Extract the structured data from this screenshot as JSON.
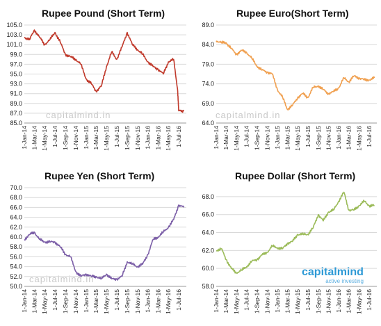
{
  "chart_data": [
    {
      "type": "line",
      "title": "Rupee Pound (Short Term)",
      "color": "#c0392b",
      "watermark": "capitalmind.in",
      "ylim": [
        85.0,
        105.0
      ],
      "yticks": [
        "105.0",
        "103.0",
        "101.0",
        "99.0",
        "97.0",
        "95.0",
        "93.0",
        "91.0",
        "89.0",
        "87.0",
        "85.0"
      ],
      "xticks": [
        "1-Jan-14",
        "1-Mar-14",
        "1-May-14",
        "1-Jul-14",
        "1-Sep-14",
        "1-Nov-14",
        "1-Jan-15",
        "1-Mar-15",
        "1-May-15",
        "1-Jul-15",
        "1-Sep-15",
        "1-Nov-15",
        "1-Jan-16",
        "1-Mar-16",
        "1-May-16",
        "1-Jul-16"
      ],
      "x": [
        "2014-01-01",
        "2014-02-01",
        "2014-03-01",
        "2014-04-01",
        "2014-05-01",
        "2014-06-01",
        "2014-07-01",
        "2014-08-01",
        "2014-09-01",
        "2014-10-01",
        "2014-11-01",
        "2014-12-01",
        "2015-01-01",
        "2015-02-01",
        "2015-03-01",
        "2015-04-01",
        "2015-05-01",
        "2015-06-01",
        "2015-07-01",
        "2015-08-01",
        "2015-09-01",
        "2015-10-01",
        "2015-11-01",
        "2015-12-01",
        "2016-01-01",
        "2016-02-01",
        "2016-03-01",
        "2016-04-01",
        "2016-05-01",
        "2016-06-01",
        "2016-06-24",
        "2016-07-01",
        "2016-08-01"
      ],
      "values": [
        102.5,
        102.0,
        104.0,
        102.5,
        101.0,
        102.0,
        103.5,
        101.5,
        99.0,
        98.5,
        98.0,
        97.0,
        94.0,
        93.0,
        91.5,
        92.5,
        96.5,
        99.5,
        98.0,
        100.5,
        103.5,
        101.0,
        100.0,
        99.0,
        97.5,
        96.5,
        96.0,
        95.0,
        97.5,
        98.0,
        92.0,
        87.5,
        87.5
      ]
    },
    {
      "type": "line",
      "title": "Rupee Euro(Short Term)",
      "color": "#f0a050",
      "watermark": "capitalmind.in",
      "ylim": [
        64.0,
        89.0
      ],
      "yticks": [
        "89.0",
        "84.0",
        "79.0",
        "74.0",
        "69.0",
        "64.0"
      ],
      "xticks": [
        "1-Jan-14",
        "1-Mar-14",
        "1-May-14",
        "1-Jul-14",
        "1-Sep-14",
        "1-Nov-14",
        "1-Jan-15",
        "1-Mar-15",
        "1-May-15",
        "1-Jul-15",
        "1-Sep-15",
        "1-Nov-15",
        "1-Jan-16",
        "1-Mar-16",
        "1-May-16",
        "1-Jul-16"
      ],
      "x": [
        "2014-01-01",
        "2014-02-01",
        "2014-03-01",
        "2014-04-01",
        "2014-05-01",
        "2014-06-01",
        "2014-07-01",
        "2014-08-01",
        "2014-09-01",
        "2014-10-01",
        "2014-11-01",
        "2014-12-01",
        "2015-01-01",
        "2015-02-01",
        "2015-03-01",
        "2015-04-01",
        "2015-05-01",
        "2015-06-01",
        "2015-07-01",
        "2015-08-01",
        "2015-09-01",
        "2015-10-01",
        "2015-11-01",
        "2015-12-01",
        "2016-01-01",
        "2016-02-01",
        "2016-03-01",
        "2016-04-01",
        "2016-05-01",
        "2016-06-01",
        "2016-07-01",
        "2016-08-01"
      ],
      "values": [
        85.0,
        84.5,
        84.5,
        83.0,
        81.5,
        82.5,
        82.0,
        80.5,
        78.5,
        77.5,
        77.0,
        76.5,
        72.5,
        70.5,
        67.5,
        68.5,
        70.5,
        71.5,
        70.5,
        73.0,
        73.5,
        72.5,
        71.5,
        72.0,
        73.0,
        75.5,
        74.5,
        76.0,
        75.5,
        75.0,
        75.0,
        75.5
      ]
    },
    {
      "type": "line",
      "title": "Rupee Yen (Short Term)",
      "color": "#7b5ea7",
      "watermark": "capitalmind.in",
      "ylim": [
        50.0,
        70.0
      ],
      "yticks": [
        "70.0",
        "68.0",
        "66.0",
        "64.0",
        "62.0",
        "60.0",
        "58.0",
        "56.0",
        "54.0",
        "52.0",
        "50.0"
      ],
      "xticks": [
        "1-Jan-14",
        "1-Mar-14",
        "1-May-14",
        "1-Jul-14",
        "1-Sep-14",
        "1-Nov-14",
        "1-Jan-15",
        "1-Mar-15",
        "1-May-15",
        "1-Jul-15",
        "1-Sep-15",
        "1-Nov-15",
        "1-Jan-16",
        "1-Mar-16",
        "1-May-16",
        "1-Jul-16"
      ],
      "x": [
        "2014-01-01",
        "2014-02-01",
        "2014-03-01",
        "2014-04-01",
        "2014-05-01",
        "2014-06-01",
        "2014-07-01",
        "2014-08-01",
        "2014-09-01",
        "2014-10-01",
        "2014-11-01",
        "2014-12-01",
        "2015-01-01",
        "2015-02-01",
        "2015-03-01",
        "2015-04-01",
        "2015-05-01",
        "2015-06-01",
        "2015-07-01",
        "2015-08-01",
        "2015-09-01",
        "2015-10-01",
        "2015-11-01",
        "2015-12-01",
        "2016-01-01",
        "2016-02-01",
        "2016-03-01",
        "2016-04-01",
        "2016-05-01",
        "2016-06-01",
        "2016-07-01",
        "2016-08-01"
      ],
      "values": [
        59.5,
        60.5,
        61.0,
        59.5,
        59.0,
        59.0,
        59.0,
        58.0,
        56.5,
        56.0,
        53.0,
        52.0,
        52.5,
        52.0,
        52.0,
        51.5,
        52.5,
        51.5,
        51.5,
        52.0,
        55.0,
        54.5,
        54.0,
        54.5,
        56.5,
        59.5,
        60.0,
        61.0,
        62.0,
        63.5,
        66.5,
        66.0
      ]
    },
    {
      "type": "line",
      "title": "Rupee Dollar (Short Term)",
      "color": "#9bbb59",
      "brand": "capitalmind",
      "brand_sub": "active investing",
      "ylim": [
        58.0,
        69.0
      ],
      "yticks": [
        "68.0",
        "66.0",
        "64.0",
        "62.0",
        "60.0",
        "58.0"
      ],
      "xticks": [
        "1-Jan-14",
        "1-Mar-14",
        "1-May-14",
        "1-Jul-14",
        "1-Sep-14",
        "1-Nov-14",
        "1-Jan-15",
        "1-Mar-15",
        "1-May-15",
        "1-Jul-15",
        "1-Sep-15",
        "1-Nov-15",
        "1-Jan-16",
        "1-Mar-16",
        "1-May-16",
        "1-Jul-16"
      ],
      "x": [
        "2014-01-01",
        "2014-02-01",
        "2014-03-01",
        "2014-04-01",
        "2014-05-01",
        "2014-06-01",
        "2014-07-01",
        "2014-08-01",
        "2014-09-01",
        "2014-10-01",
        "2014-11-01",
        "2014-12-01",
        "2015-01-01",
        "2015-02-01",
        "2015-03-01",
        "2015-04-01",
        "2015-05-01",
        "2015-06-01",
        "2015-07-01",
        "2015-08-01",
        "2015-09-01",
        "2015-10-01",
        "2015-11-01",
        "2015-12-01",
        "2016-01-01",
        "2016-02-01",
        "2016-03-01",
        "2016-04-01",
        "2016-05-01",
        "2016-06-01",
        "2016-07-01",
        "2016-08-01"
      ],
      "values": [
        62.0,
        62.2,
        61.0,
        60.0,
        59.5,
        59.8,
        60.2,
        60.8,
        61.0,
        61.5,
        61.8,
        62.5,
        62.3,
        62.2,
        62.8,
        63.0,
        63.8,
        63.8,
        63.8,
        64.5,
        66.0,
        65.3,
        66.3,
        66.5,
        67.5,
        68.5,
        66.5,
        66.5,
        67.0,
        67.5,
        67.0,
        67.0
      ]
    }
  ]
}
